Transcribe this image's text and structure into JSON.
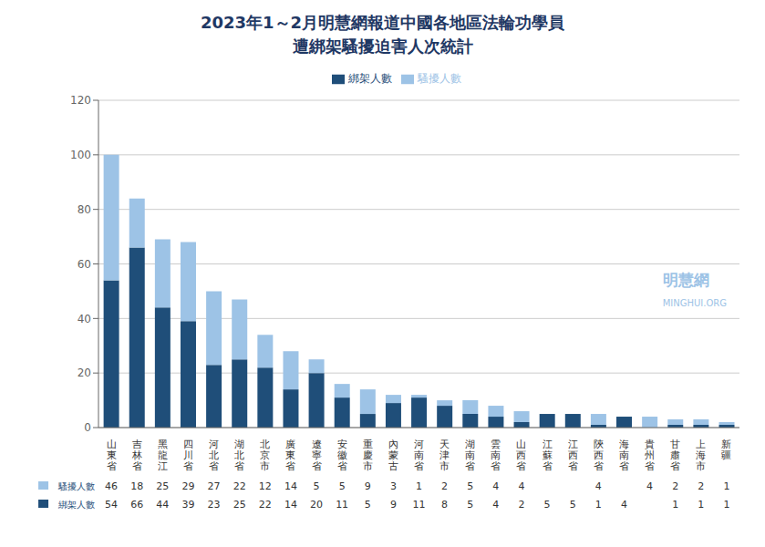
{
  "chart_data": {
    "type": "bar",
    "title": "2023年1～2月明慧網報道中國各地區法輪功學員",
    "subtitle": "遭綁架騷擾迫害人次統計",
    "categories": [
      "山\n東\n省",
      "吉\n林\n省",
      "黑\n龍\n江",
      "四\n川\n省",
      "河\n北\n省",
      "湖\n北\n省",
      "北\n京\n市",
      "廣\n東\n省",
      "遼\n寧\n省",
      "安\n徽\n省",
      "重\n慶\n市",
      "內\n蒙\n古",
      "河\n南\n省",
      "天\n津\n市",
      "湖\n南\n省",
      "雲\n南\n省",
      "山\n西\n省",
      "江\n蘇\n省",
      "江\n西\n省",
      "陝\n西\n省",
      "海\n南\n省",
      "貴\n州\n省",
      "甘\n肅\n省",
      "上\n海\n市",
      "新\n疆"
    ],
    "series": [
      {
        "name": "綁架人數",
        "color": "#1f4e79",
        "values": [
          54,
          66,
          44,
          39,
          23,
          25,
          22,
          14,
          20,
          11,
          5,
          9,
          11,
          8,
          5,
          4,
          2,
          5,
          5,
          1,
          4,
          0,
          1,
          1,
          1
        ],
        "value_labels": [
          "54",
          "66",
          "44",
          "39",
          "23",
          "25",
          "22",
          "14",
          "20",
          "11",
          "5",
          "9",
          "11",
          "8",
          "5",
          "4",
          "2",
          "5",
          "5",
          "1",
          "4",
          null,
          "1",
          "1",
          "1"
        ]
      },
      {
        "name": "騷擾人數",
        "color": "#9dc3e6",
        "values": [
          46,
          18,
          25,
          29,
          27,
          22,
          12,
          14,
          5,
          5,
          9,
          3,
          1,
          2,
          5,
          4,
          4,
          0,
          0,
          4,
          0,
          4,
          2,
          2,
          1
        ],
        "value_labels": [
          "46",
          "18",
          "25",
          "29",
          "27",
          "22",
          "12",
          "14",
          "5",
          "5",
          "9",
          "3",
          "1",
          "2",
          "5",
          "4",
          "4",
          null,
          null,
          "4",
          null,
          "4",
          "2",
          "2",
          "1"
        ]
      }
    ],
    "stacked": true,
    "ylim": [
      0,
      120
    ],
    "yticks": [
      0,
      20,
      40,
      60,
      80,
      100,
      120
    ],
    "grid": true,
    "legend": "top",
    "data_labels": true,
    "annotations": [
      "明慧網",
      "MINGHUI.ORG"
    ]
  }
}
